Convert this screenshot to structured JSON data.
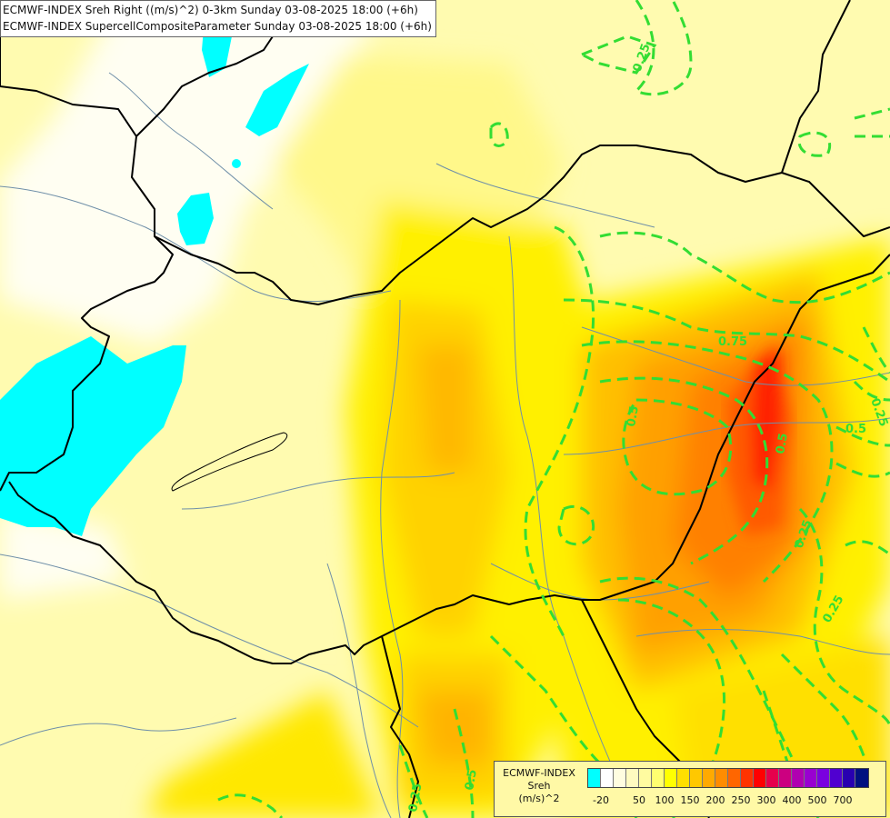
{
  "title": {
    "line1": "ECMWF-INDEX Sreh Right ((m/s)^2) 0-3km Sunday 03-08-2025 18:00 (+6h)",
    "line2": "ECMWF-INDEX SupercellCompositeParameter Sunday 03-08-2025 18:00 (+6h)"
  },
  "contour_labels": [
    "0.25",
    "0.25",
    "0.75",
    "0.5",
    "0.5",
    "0.5",
    "0.25",
    "0.25",
    "0.5",
    "0.25"
  ],
  "legend": {
    "title": "ECMWF-INDEX",
    "name": "Sreh",
    "unit": "(m/s)^2",
    "colors": [
      "#00ffff",
      "#ffffff",
      "#fffde0",
      "#fffbc0",
      "#fffba0",
      "#ffff70",
      "#ffff00",
      "#ffe000",
      "#ffc800",
      "#ffaa00",
      "#ff8c00",
      "#ff6600",
      "#ff3300",
      "#ff0000",
      "#e6004c",
      "#cc0080",
      "#b000b0",
      "#9900d0",
      "#7a00e0",
      "#5000d0",
      "#2800b0",
      "#001080"
    ],
    "ticks": [
      "-20",
      "50",
      "100",
      "150",
      "200",
      "250",
      "300",
      "400",
      "500",
      "700"
    ]
  },
  "colors": {
    "sea_cyan": "#00ffff",
    "contour_green": "#33dd33",
    "border": "#000000",
    "river": "#6f8fa8"
  }
}
